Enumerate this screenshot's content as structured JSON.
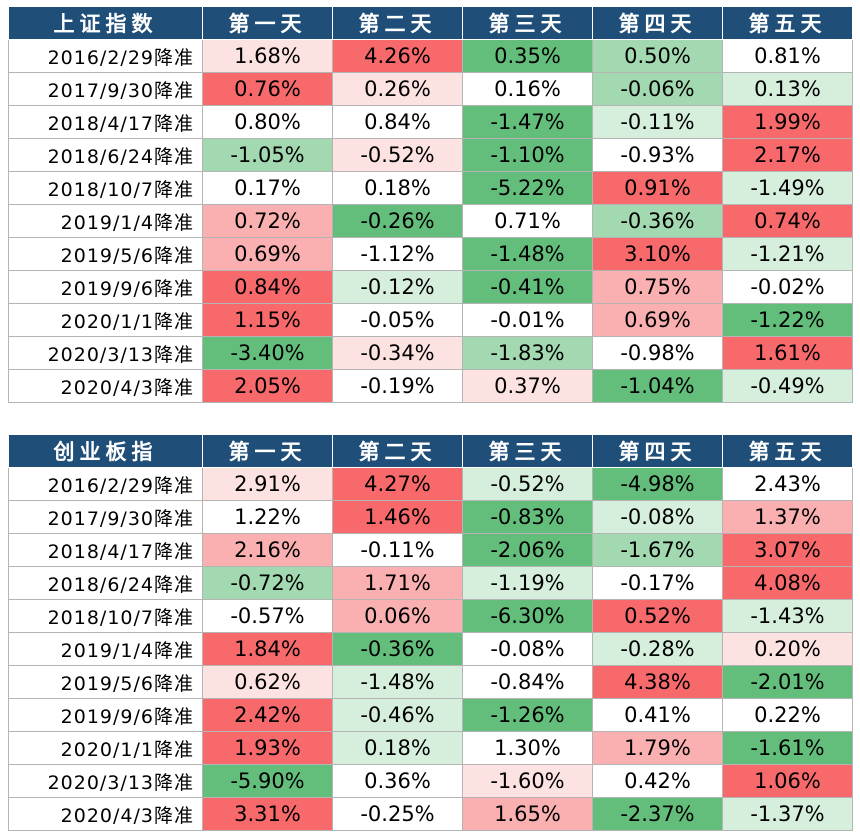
{
  "colors": {
    "header_bg": "#1f4e79",
    "red_strong": "#f8696b",
    "red_mid": "#fab0b1",
    "red_light": "#fde2e2",
    "green_strong": "#63be7b",
    "green_mid": "#a3d9b1",
    "green_light": "#d6efdd",
    "neutral": "#ffffff"
  },
  "tables": [
    {
      "id": "shanghai",
      "headers": [
        "上证指数",
        "第一天",
        "第二天",
        "第三天",
        "第四天",
        "第五天"
      ],
      "rows": [
        {
          "date": "2016/2/29降准",
          "values": [
            "1.68%",
            "4.26%",
            "0.35%",
            "0.50%",
            "0.81%"
          ],
          "fills": [
            "red_light",
            "red_strong",
            "green_strong",
            "green_mid",
            "neutral"
          ]
        },
        {
          "date": "2017/9/30降准",
          "values": [
            "0.76%",
            "0.26%",
            "0.16%",
            "-0.06%",
            "0.13%"
          ],
          "fills": [
            "red_strong",
            "red_light",
            "neutral",
            "green_mid",
            "green_light"
          ]
        },
        {
          "date": "2018/4/17降准",
          "values": [
            "0.80%",
            "0.84%",
            "-1.47%",
            "-0.11%",
            "1.99%"
          ],
          "fills": [
            "neutral",
            "neutral",
            "green_strong",
            "green_light",
            "red_strong"
          ]
        },
        {
          "date": "2018/6/24降准",
          "values": [
            "-1.05%",
            "-0.52%",
            "-1.10%",
            "-0.93%",
            "2.17%"
          ],
          "fills": [
            "green_mid",
            "red_light",
            "green_strong",
            "neutral",
            "red_strong"
          ]
        },
        {
          "date": "2018/10/7降准",
          "values": [
            "0.17%",
            "0.18%",
            "-5.22%",
            "0.91%",
            "-1.49%"
          ],
          "fills": [
            "neutral",
            "neutral",
            "green_strong",
            "red_strong",
            "green_light"
          ]
        },
        {
          "date": "2019/1/4降准",
          "values": [
            "0.72%",
            "-0.26%",
            "0.71%",
            "-0.36%",
            "0.74%"
          ],
          "fills": [
            "red_mid",
            "green_strong",
            "neutral",
            "green_mid",
            "red_strong"
          ]
        },
        {
          "date": "2019/5/6降准",
          "values": [
            "0.69%",
            "-1.12%",
            "-1.48%",
            "3.10%",
            "-1.21%"
          ],
          "fills": [
            "red_mid",
            "neutral",
            "green_strong",
            "red_strong",
            "green_light"
          ]
        },
        {
          "date": "2019/9/6降准",
          "values": [
            "0.84%",
            "-0.12%",
            "-0.41%",
            "0.75%",
            "-0.02%"
          ],
          "fills": [
            "red_strong",
            "green_light",
            "green_strong",
            "red_mid",
            "neutral"
          ]
        },
        {
          "date": "2020/1/1降准",
          "values": [
            "1.15%",
            "-0.05%",
            "-0.01%",
            "0.69%",
            "-1.22%"
          ],
          "fills": [
            "red_strong",
            "neutral",
            "neutral",
            "red_mid",
            "green_strong"
          ]
        },
        {
          "date": "2020/3/13降准",
          "values": [
            "-3.40%",
            "-0.34%",
            "-1.83%",
            "-0.98%",
            "1.61%"
          ],
          "fills": [
            "green_strong",
            "red_light",
            "green_mid",
            "neutral",
            "red_strong"
          ]
        },
        {
          "date": "2020/4/3降准",
          "values": [
            "2.05%",
            "-0.19%",
            "0.37%",
            "-1.04%",
            "-0.49%"
          ],
          "fills": [
            "red_strong",
            "neutral",
            "red_light",
            "green_strong",
            "green_light"
          ]
        }
      ]
    },
    {
      "id": "chinext",
      "headers": [
        "创业板指",
        "第一天",
        "第二天",
        "第三天",
        "第四天",
        "第五天"
      ],
      "rows": [
        {
          "date": "2016/2/29降准",
          "values": [
            "2.91%",
            "4.27%",
            "-0.52%",
            "-4.98%",
            "2.43%"
          ],
          "fills": [
            "red_light",
            "red_strong",
            "green_light",
            "green_strong",
            "neutral"
          ]
        },
        {
          "date": "2017/9/30降准",
          "values": [
            "1.22%",
            "1.46%",
            "-0.83%",
            "-0.08%",
            "1.37%"
          ],
          "fills": [
            "neutral",
            "red_strong",
            "green_strong",
            "green_light",
            "red_mid"
          ]
        },
        {
          "date": "2018/4/17降准",
          "values": [
            "2.16%",
            "-0.11%",
            "-2.06%",
            "-1.67%",
            "3.07%"
          ],
          "fills": [
            "red_mid",
            "neutral",
            "green_strong",
            "green_mid",
            "red_strong"
          ]
        },
        {
          "date": "2018/6/24降准",
          "values": [
            "-0.72%",
            "1.71%",
            "-1.19%",
            "-0.17%",
            "4.08%"
          ],
          "fills": [
            "green_mid",
            "red_mid",
            "green_light",
            "neutral",
            "red_strong"
          ]
        },
        {
          "date": "2018/10/7降准",
          "values": [
            "-0.57%",
            "0.06%",
            "-6.30%",
            "0.52%",
            "-1.43%"
          ],
          "fills": [
            "neutral",
            "red_mid",
            "green_strong",
            "red_strong",
            "green_light"
          ]
        },
        {
          "date": "2019/1/4降准",
          "values": [
            "1.84%",
            "-0.36%",
            "-0.08%",
            "-0.28%",
            "0.20%"
          ],
          "fills": [
            "red_strong",
            "green_strong",
            "neutral",
            "green_light",
            "red_light"
          ]
        },
        {
          "date": "2019/5/6降准",
          "values": [
            "0.62%",
            "-1.48%",
            "-0.84%",
            "4.38%",
            "-2.01%"
          ],
          "fills": [
            "red_light",
            "green_light",
            "neutral",
            "red_strong",
            "green_strong"
          ]
        },
        {
          "date": "2019/9/6降准",
          "values": [
            "2.42%",
            "-0.46%",
            "-1.26%",
            "0.41%",
            "0.22%"
          ],
          "fills": [
            "red_strong",
            "green_light",
            "green_strong",
            "neutral",
            "neutral"
          ]
        },
        {
          "date": "2020/1/1降准",
          "values": [
            "1.93%",
            "0.18%",
            "1.30%",
            "1.79%",
            "-1.61%"
          ],
          "fills": [
            "red_strong",
            "green_light",
            "neutral",
            "red_mid",
            "green_strong"
          ]
        },
        {
          "date": "2020/3/13降准",
          "values": [
            "-5.90%",
            "0.36%",
            "-1.60%",
            "0.42%",
            "1.06%"
          ],
          "fills": [
            "green_strong",
            "neutral",
            "red_light",
            "neutral",
            "red_strong"
          ]
        },
        {
          "date": "2020/4/3降准",
          "values": [
            "3.31%",
            "-0.25%",
            "1.65%",
            "-2.37%",
            "-1.37%"
          ],
          "fills": [
            "red_strong",
            "neutral",
            "red_mid",
            "green_strong",
            "green_light"
          ]
        }
      ]
    }
  ]
}
